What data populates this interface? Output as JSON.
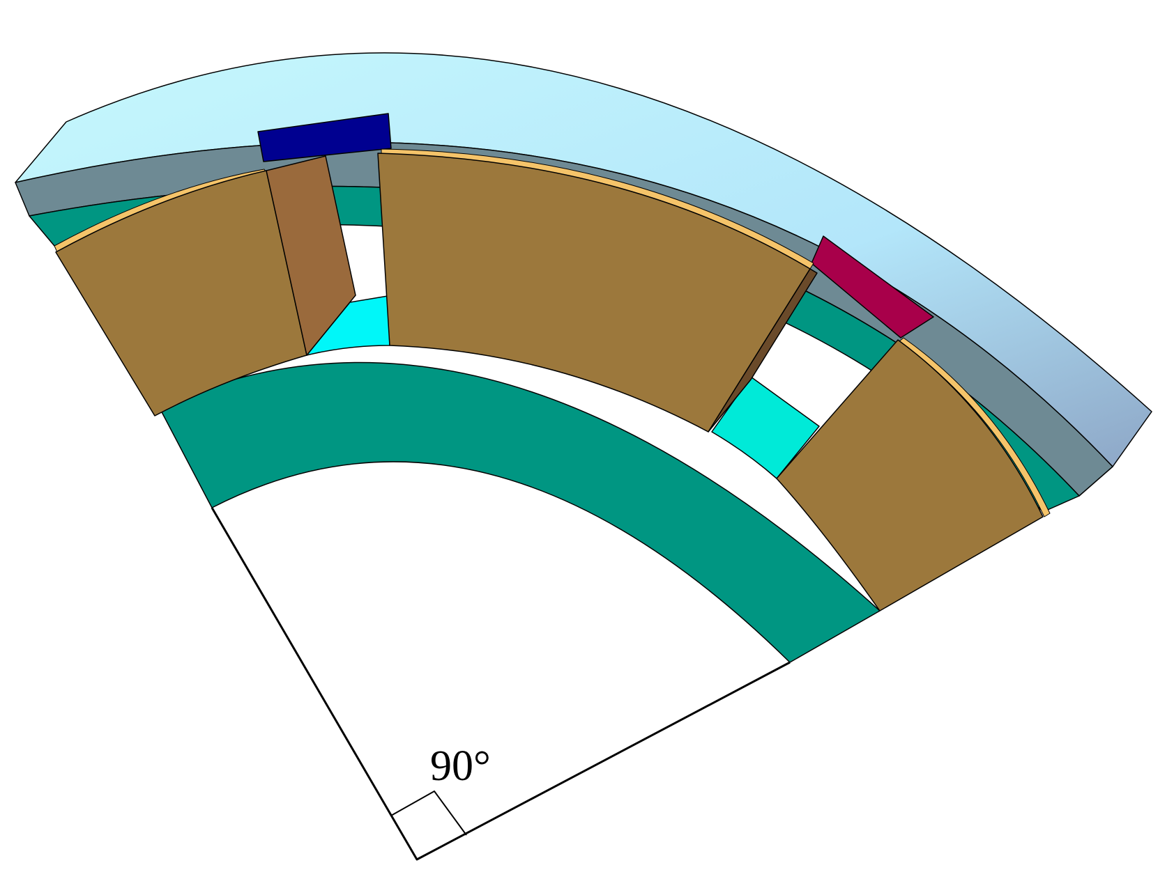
{
  "diagram": {
    "angle_label": "90°"
  },
  "colors": {
    "outer_ring_face": "#c6f8fd",
    "outer_ring_face_end": "#8da6c6",
    "outer_ring_side": "#6e8a94",
    "teal": "#009682",
    "tan_block": "#9c783c",
    "brown_block": "#9a6a3c",
    "dark_brown_strip": "#6a4a2a",
    "orange_strip": "#f5c46a",
    "cyan": "#00f7f9",
    "aqua": "#00ead8",
    "navy": "#000090",
    "crimson": "#a8004a",
    "outline": "#000000"
  }
}
